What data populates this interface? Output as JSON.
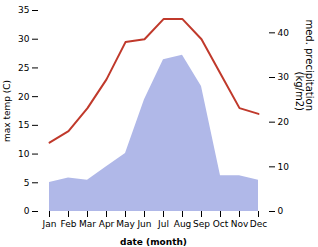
{
  "chart_data": {
    "type": "line",
    "categories": [
      "Jan",
      "Feb",
      "Mar",
      "Apr",
      "May",
      "Jun",
      "Jul",
      "Aug",
      "Sep",
      "Oct",
      "Nov",
      "Dec"
    ],
    "xlabel": "date (month)",
    "ylabel": "max temp (C)",
    "y2label": "med. precipitation\n(kg/m2)",
    "ylim": [
      0,
      35
    ],
    "yticks": [
      0,
      5,
      10,
      15,
      20,
      25,
      30,
      35
    ],
    "y2lim": [
      0,
      45
    ],
    "y2ticks": [
      0,
      10,
      20,
      30,
      40
    ],
    "grid": false,
    "series": [
      {
        "type": "area",
        "axis": "y2",
        "color": "#b0b8e8",
        "values": [
          6.5,
          7.5,
          7,
          10,
          13,
          25,
          34,
          35,
          28,
          8,
          8,
          7
        ]
      },
      {
        "type": "line",
        "color": "#c0392b",
        "values": [
          12,
          14,
          18,
          23,
          29.5,
          30,
          33.5,
          33.5,
          30,
          24,
          18,
          17
        ]
      }
    ]
  }
}
